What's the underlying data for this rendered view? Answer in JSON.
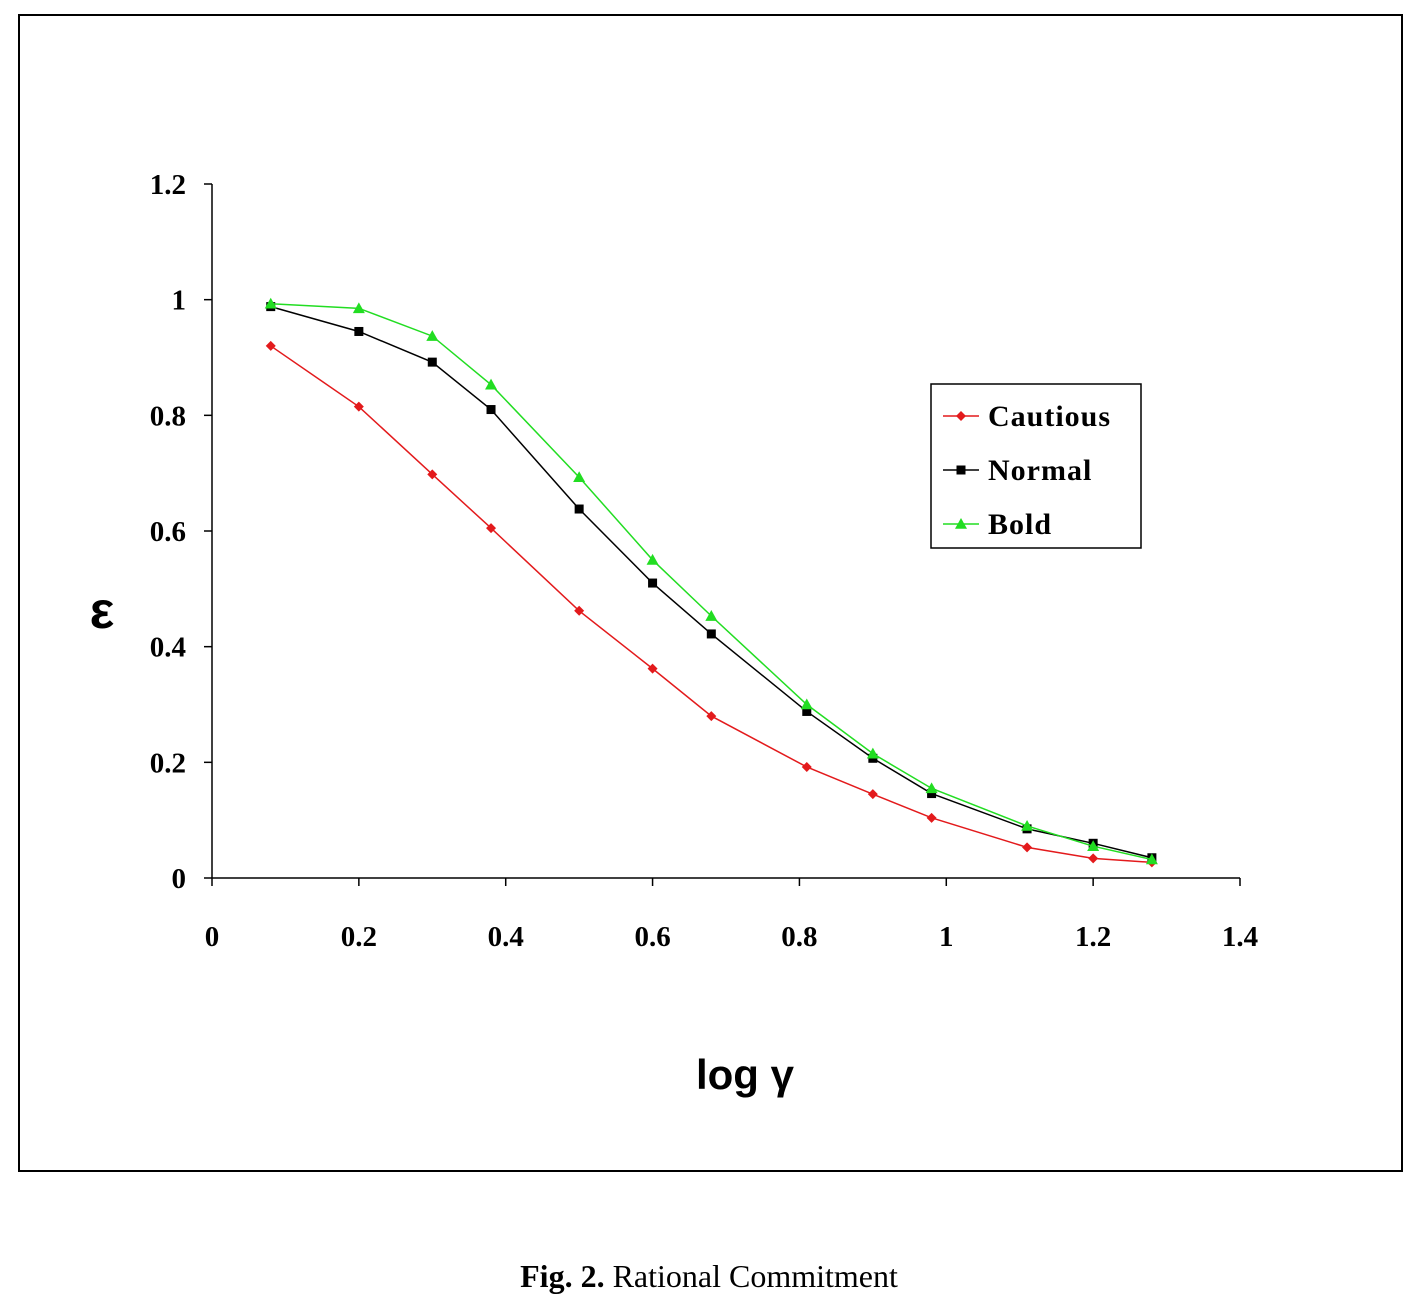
{
  "chart_data": {
    "type": "line",
    "xlabel": "log γ",
    "ylabel": "ε",
    "xlim": [
      0,
      1.4
    ],
    "ylim": [
      0,
      1.2
    ],
    "xticks": [
      "0",
      "0.2",
      "0.4",
      "0.6",
      "0.8",
      "1",
      "1.2",
      "1.4"
    ],
    "yticks": [
      "0",
      "0.2",
      "0.4",
      "0.6",
      "0.8",
      "1",
      "1.2"
    ],
    "legend_position": "right",
    "grid": false,
    "series": [
      {
        "name": "Cautious",
        "color": "#e31a1c",
        "marker": "diamond",
        "x": [
          0.08,
          0.2,
          0.3,
          0.38,
          0.5,
          0.6,
          0.68,
          0.81,
          0.9,
          0.98,
          1.11,
          1.2,
          1.28
        ],
        "y": [
          0.92,
          0.815,
          0.698,
          0.605,
          0.462,
          0.362,
          0.28,
          0.192,
          0.145,
          0.104,
          0.053,
          0.034,
          0.027
        ]
      },
      {
        "name": "Normal",
        "color": "#000000",
        "marker": "square",
        "x": [
          0.08,
          0.2,
          0.3,
          0.38,
          0.5,
          0.6,
          0.68,
          0.81,
          0.9,
          0.98,
          1.11,
          1.2,
          1.28
        ],
        "y": [
          0.988,
          0.945,
          0.892,
          0.81,
          0.638,
          0.51,
          0.422,
          0.288,
          0.207,
          0.146,
          0.085,
          0.06,
          0.035
        ]
      },
      {
        "name": "Bold",
        "color": "#22dd22",
        "marker": "triangle",
        "x": [
          0.08,
          0.2,
          0.3,
          0.38,
          0.5,
          0.6,
          0.68,
          0.81,
          0.9,
          0.98,
          1.11,
          1.2,
          1.28
        ],
        "y": [
          0.993,
          0.985,
          0.937,
          0.853,
          0.693,
          0.55,
          0.453,
          0.3,
          0.215,
          0.155,
          0.09,
          0.055,
          0.032
        ]
      }
    ]
  },
  "caption": {
    "label": "Fig. 2.",
    "text": " Rational Commitment"
  }
}
